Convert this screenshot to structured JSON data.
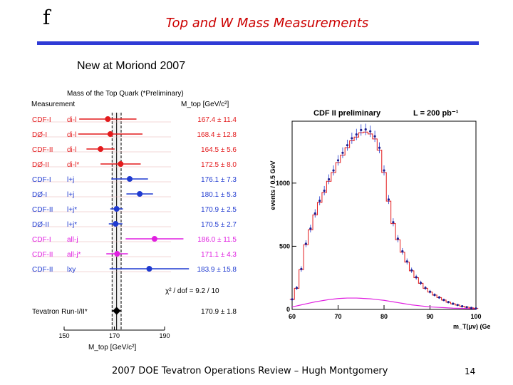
{
  "slide": {
    "logo": "f",
    "title": "Top and W Mass Measurements",
    "subtitle": "New at Moriond 2007",
    "footer": "2007 DOE Tevatron Operations Review – Hugh Montgomery",
    "page_number": "14"
  },
  "colors": {
    "accent_rule": "#2f3bd6",
    "title": "#cc0000"
  },
  "chart_data": [
    {
      "type": "scatter",
      "title": "Mass of the Top Quark (*Preliminary)",
      "column_header": "Measurement",
      "units_header": "M_top  [GeV/c²]",
      "xlabel": "M_top  [GeV/c²]",
      "xlim": [
        150,
        190
      ],
      "xticks": [
        150,
        170,
        190
      ],
      "combined_band": [
        169.1,
        172.7
      ],
      "chi2_label": "χ² / dof  =  9.2 / 10",
      "points": [
        {
          "exp": "CDF-I",
          "chan": "di-l",
          "value": 167.4,
          "err": 11.4,
          "text": "167.4 ± 11.4",
          "color": "#e31a1c"
        },
        {
          "exp": "DØ-I",
          "chan": "di-l",
          "value": 168.4,
          "err": 12.8,
          "text": "168.4 ± 12.8",
          "color": "#e31a1c"
        },
        {
          "exp": "CDF-II",
          "chan": "di-l",
          "value": 164.5,
          "err": 5.6,
          "text": "164.5 ±  5.6",
          "color": "#e31a1c"
        },
        {
          "exp": "DØ-II",
          "chan": "di-l*",
          "value": 172.5,
          "err": 8.0,
          "text": "172.5 ±  8.0",
          "color": "#e31a1c"
        },
        {
          "exp": "CDF-I",
          "chan": "l+j",
          "value": 176.1,
          "err": 7.3,
          "text": "176.1 ±  7.3",
          "color": "#1f3ad0"
        },
        {
          "exp": "DØ-I",
          "chan": "l+j",
          "value": 180.1,
          "err": 5.3,
          "text": "180.1 ±  5.3",
          "color": "#1f3ad0"
        },
        {
          "exp": "CDF-II",
          "chan": "l+j*",
          "value": 170.9,
          "err": 2.5,
          "text": "170.9 ±  2.5",
          "color": "#1f3ad0"
        },
        {
          "exp": "DØ-II",
          "chan": "l+j*",
          "value": 170.5,
          "err": 2.7,
          "text": "170.5 ±  2.7",
          "color": "#1f3ad0"
        },
        {
          "exp": "CDF-I",
          "chan": "all-j",
          "value": 186.0,
          "err": 11.5,
          "text": "186.0 ± 11.5",
          "color": "#e020e0"
        },
        {
          "exp": "CDF-II",
          "chan": "all-j*",
          "value": 171.1,
          "err": 4.3,
          "text": "171.1 ±  4.3",
          "color": "#e020e0"
        },
        {
          "exp": "CDF-II",
          "chan": "lxy",
          "value": 183.9,
          "err": 15.8,
          "text": "183.9 ± 15.8",
          "color": "#1f3ad0"
        }
      ],
      "combined": {
        "exp": "Tevatron Run-I/II*",
        "value": 170.9,
        "err": 1.8,
        "text": "170.9 ±  1.8",
        "color": "#000000"
      }
    },
    {
      "type": "line",
      "title": "CDF II preliminary",
      "lumi_label": "L = 200 pb⁻¹",
      "xlabel": "m_T(μν) (GeV)",
      "ylabel": "events / 0.5 GeV",
      "xlim": [
        60,
        100
      ],
      "ylim": [
        0,
        1490
      ],
      "xticks": [
        60,
        70,
        80,
        90,
        100
      ],
      "yticks": [
        0,
        500,
        1000
      ],
      "x": [
        60,
        61,
        62,
        63,
        64,
        65,
        66,
        67,
        68,
        69,
        70,
        71,
        72,
        73,
        74,
        75,
        76,
        77,
        78,
        79,
        80,
        81,
        82,
        83,
        84,
        85,
        86,
        87,
        88,
        89,
        90,
        91,
        92,
        93,
        94,
        95,
        96,
        97,
        98,
        99,
        100
      ],
      "data": [
        80,
        170,
        320,
        520,
        640,
        760,
        860,
        940,
        1030,
        1100,
        1180,
        1240,
        1300,
        1355,
        1385,
        1420,
        1425,
        1410,
        1370,
        1280,
        1100,
        870,
        690,
        560,
        460,
        380,
        310,
        255,
        210,
        170,
        140,
        115,
        95,
        75,
        58,
        45,
        35,
        25,
        18,
        12,
        8
      ],
      "background": [
        20,
        28,
        36,
        44,
        52,
        60,
        66,
        72,
        78,
        82,
        86,
        88,
        90,
        90,
        90,
        88,
        86,
        84,
        80,
        76,
        72,
        66,
        60,
        54,
        48,
        42,
        36,
        32,
        28,
        24,
        20,
        18,
        16,
        14,
        12,
        10,
        9,
        8,
        7,
        6,
        5
      ]
    }
  ]
}
